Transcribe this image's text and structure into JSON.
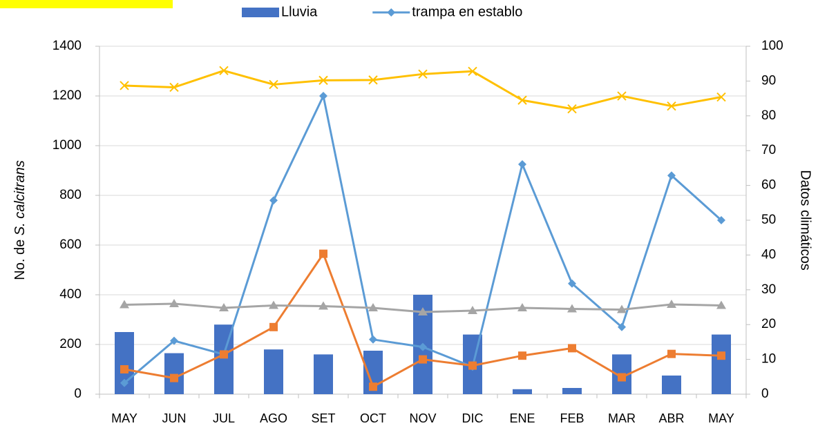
{
  "chart_data": {
    "type": "combo",
    "ylabel": [
      "No. de ",
      "S. calcitrans"
    ],
    "y2label": "Datos climáticos",
    "categories": [
      "MAY",
      "JUN",
      "JUL",
      "AGO",
      "SET",
      "OCT",
      "NOV",
      "DIC",
      "ENE",
      "FEB",
      "MAR",
      "ABR",
      "MAY"
    ],
    "ylim": [
      0,
      1400
    ],
    "yticks": [
      0,
      200,
      400,
      600,
      800,
      1000,
      1200,
      1400
    ],
    "y2lim": [
      0,
      100
    ],
    "y2ticks": [
      0,
      10,
      20,
      30,
      40,
      50,
      60,
      70,
      80,
      90,
      100
    ],
    "grid": true,
    "series": [
      {
        "name": "Lluvia",
        "type": "bar",
        "color": "#4472c4",
        "values": [
          250,
          165,
          280,
          180,
          160,
          175,
          400,
          240,
          20,
          25,
          160,
          75,
          240
        ]
      },
      {
        "name": "trampa en establo",
        "type": "line",
        "marker": "diamond",
        "color": "#5b9bd5",
        "values": [
          45,
          215,
          160,
          780,
          1200,
          220,
          190,
          110,
          925,
          445,
          270,
          880,
          700
        ]
      },
      {
        "type": "line",
        "marker": "square",
        "color": "#ed7d31",
        "values": [
          100,
          65,
          160,
          270,
          565,
          30,
          140,
          115,
          155,
          185,
          68,
          162,
          155
        ]
      },
      {
        "type": "line",
        "marker": "triangle",
        "color": "#a5a5a5",
        "axis": "y2",
        "values": [
          25.7,
          26,
          24.8,
          25.5,
          25.3,
          24.8,
          23.6,
          24,
          24.8,
          24.5,
          24.3,
          25.8,
          25.5
        ]
      },
      {
        "type": "line",
        "marker": "x",
        "color": "#ffc000",
        "axis": "y2",
        "values": [
          88.7,
          88.2,
          93,
          89,
          90.2,
          90.3,
          92,
          92.8,
          84.5,
          82,
          85.7,
          82.8,
          85.4
        ]
      }
    ]
  }
}
